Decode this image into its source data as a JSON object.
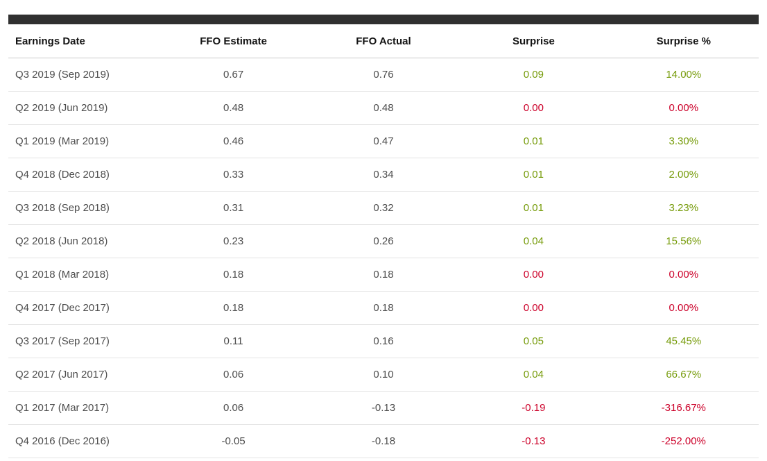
{
  "colors": {
    "positive": "#769b0a",
    "negative": "#cc0029",
    "header_bar": "#303030"
  },
  "table": {
    "columns": [
      {
        "key": "earnings_date",
        "label": "Earnings Date",
        "align": "left",
        "colored": false
      },
      {
        "key": "ffo_estimate",
        "label": "FFO Estimate",
        "align": "center",
        "colored": false
      },
      {
        "key": "ffo_actual",
        "label": "FFO Actual",
        "align": "center",
        "colored": false
      },
      {
        "key": "surprise",
        "label": "Surprise",
        "align": "center",
        "colored": true
      },
      {
        "key": "surprise_pct",
        "label": "Surprise %",
        "align": "center",
        "colored": true
      }
    ],
    "rows": [
      {
        "earnings_date": "Q3 2019 (Sep 2019)",
        "ffo_estimate": "0.67",
        "ffo_actual": "0.76",
        "surprise": "0.09",
        "surprise_pct": "14.00%",
        "sentiment": "positive"
      },
      {
        "earnings_date": "Q2 2019 (Jun 2019)",
        "ffo_estimate": "0.48",
        "ffo_actual": "0.48",
        "surprise": "0.00",
        "surprise_pct": "0.00%",
        "sentiment": "negative"
      },
      {
        "earnings_date": "Q1 2019 (Mar 2019)",
        "ffo_estimate": "0.46",
        "ffo_actual": "0.47",
        "surprise": "0.01",
        "surprise_pct": "3.30%",
        "sentiment": "positive"
      },
      {
        "earnings_date": "Q4 2018 (Dec 2018)",
        "ffo_estimate": "0.33",
        "ffo_actual": "0.34",
        "surprise": "0.01",
        "surprise_pct": "2.00%",
        "sentiment": "positive"
      },
      {
        "earnings_date": "Q3 2018 (Sep 2018)",
        "ffo_estimate": "0.31",
        "ffo_actual": "0.32",
        "surprise": "0.01",
        "surprise_pct": "3.23%",
        "sentiment": "positive"
      },
      {
        "earnings_date": "Q2 2018 (Jun 2018)",
        "ffo_estimate": "0.23",
        "ffo_actual": "0.26",
        "surprise": "0.04",
        "surprise_pct": "15.56%",
        "sentiment": "positive"
      },
      {
        "earnings_date": "Q1 2018 (Mar 2018)",
        "ffo_estimate": "0.18",
        "ffo_actual": "0.18",
        "surprise": "0.00",
        "surprise_pct": "0.00%",
        "sentiment": "negative"
      },
      {
        "earnings_date": "Q4 2017 (Dec 2017)",
        "ffo_estimate": "0.18",
        "ffo_actual": "0.18",
        "surprise": "0.00",
        "surprise_pct": "0.00%",
        "sentiment": "negative"
      },
      {
        "earnings_date": "Q3 2017 (Sep 2017)",
        "ffo_estimate": "0.11",
        "ffo_actual": "0.16",
        "surprise": "0.05",
        "surprise_pct": "45.45%",
        "sentiment": "positive"
      },
      {
        "earnings_date": "Q2 2017 (Jun 2017)",
        "ffo_estimate": "0.06",
        "ffo_actual": "0.10",
        "surprise": "0.04",
        "surprise_pct": "66.67%",
        "sentiment": "positive"
      },
      {
        "earnings_date": "Q1 2017 (Mar 2017)",
        "ffo_estimate": "0.06",
        "ffo_actual": "-0.13",
        "surprise": "-0.19",
        "surprise_pct": "-316.67%",
        "sentiment": "negative"
      },
      {
        "earnings_date": "Q4 2016 (Dec 2016)",
        "ffo_estimate": "-0.05",
        "ffo_actual": "-0.18",
        "surprise": "-0.13",
        "surprise_pct": "-252.00%",
        "sentiment": "negative"
      }
    ]
  }
}
